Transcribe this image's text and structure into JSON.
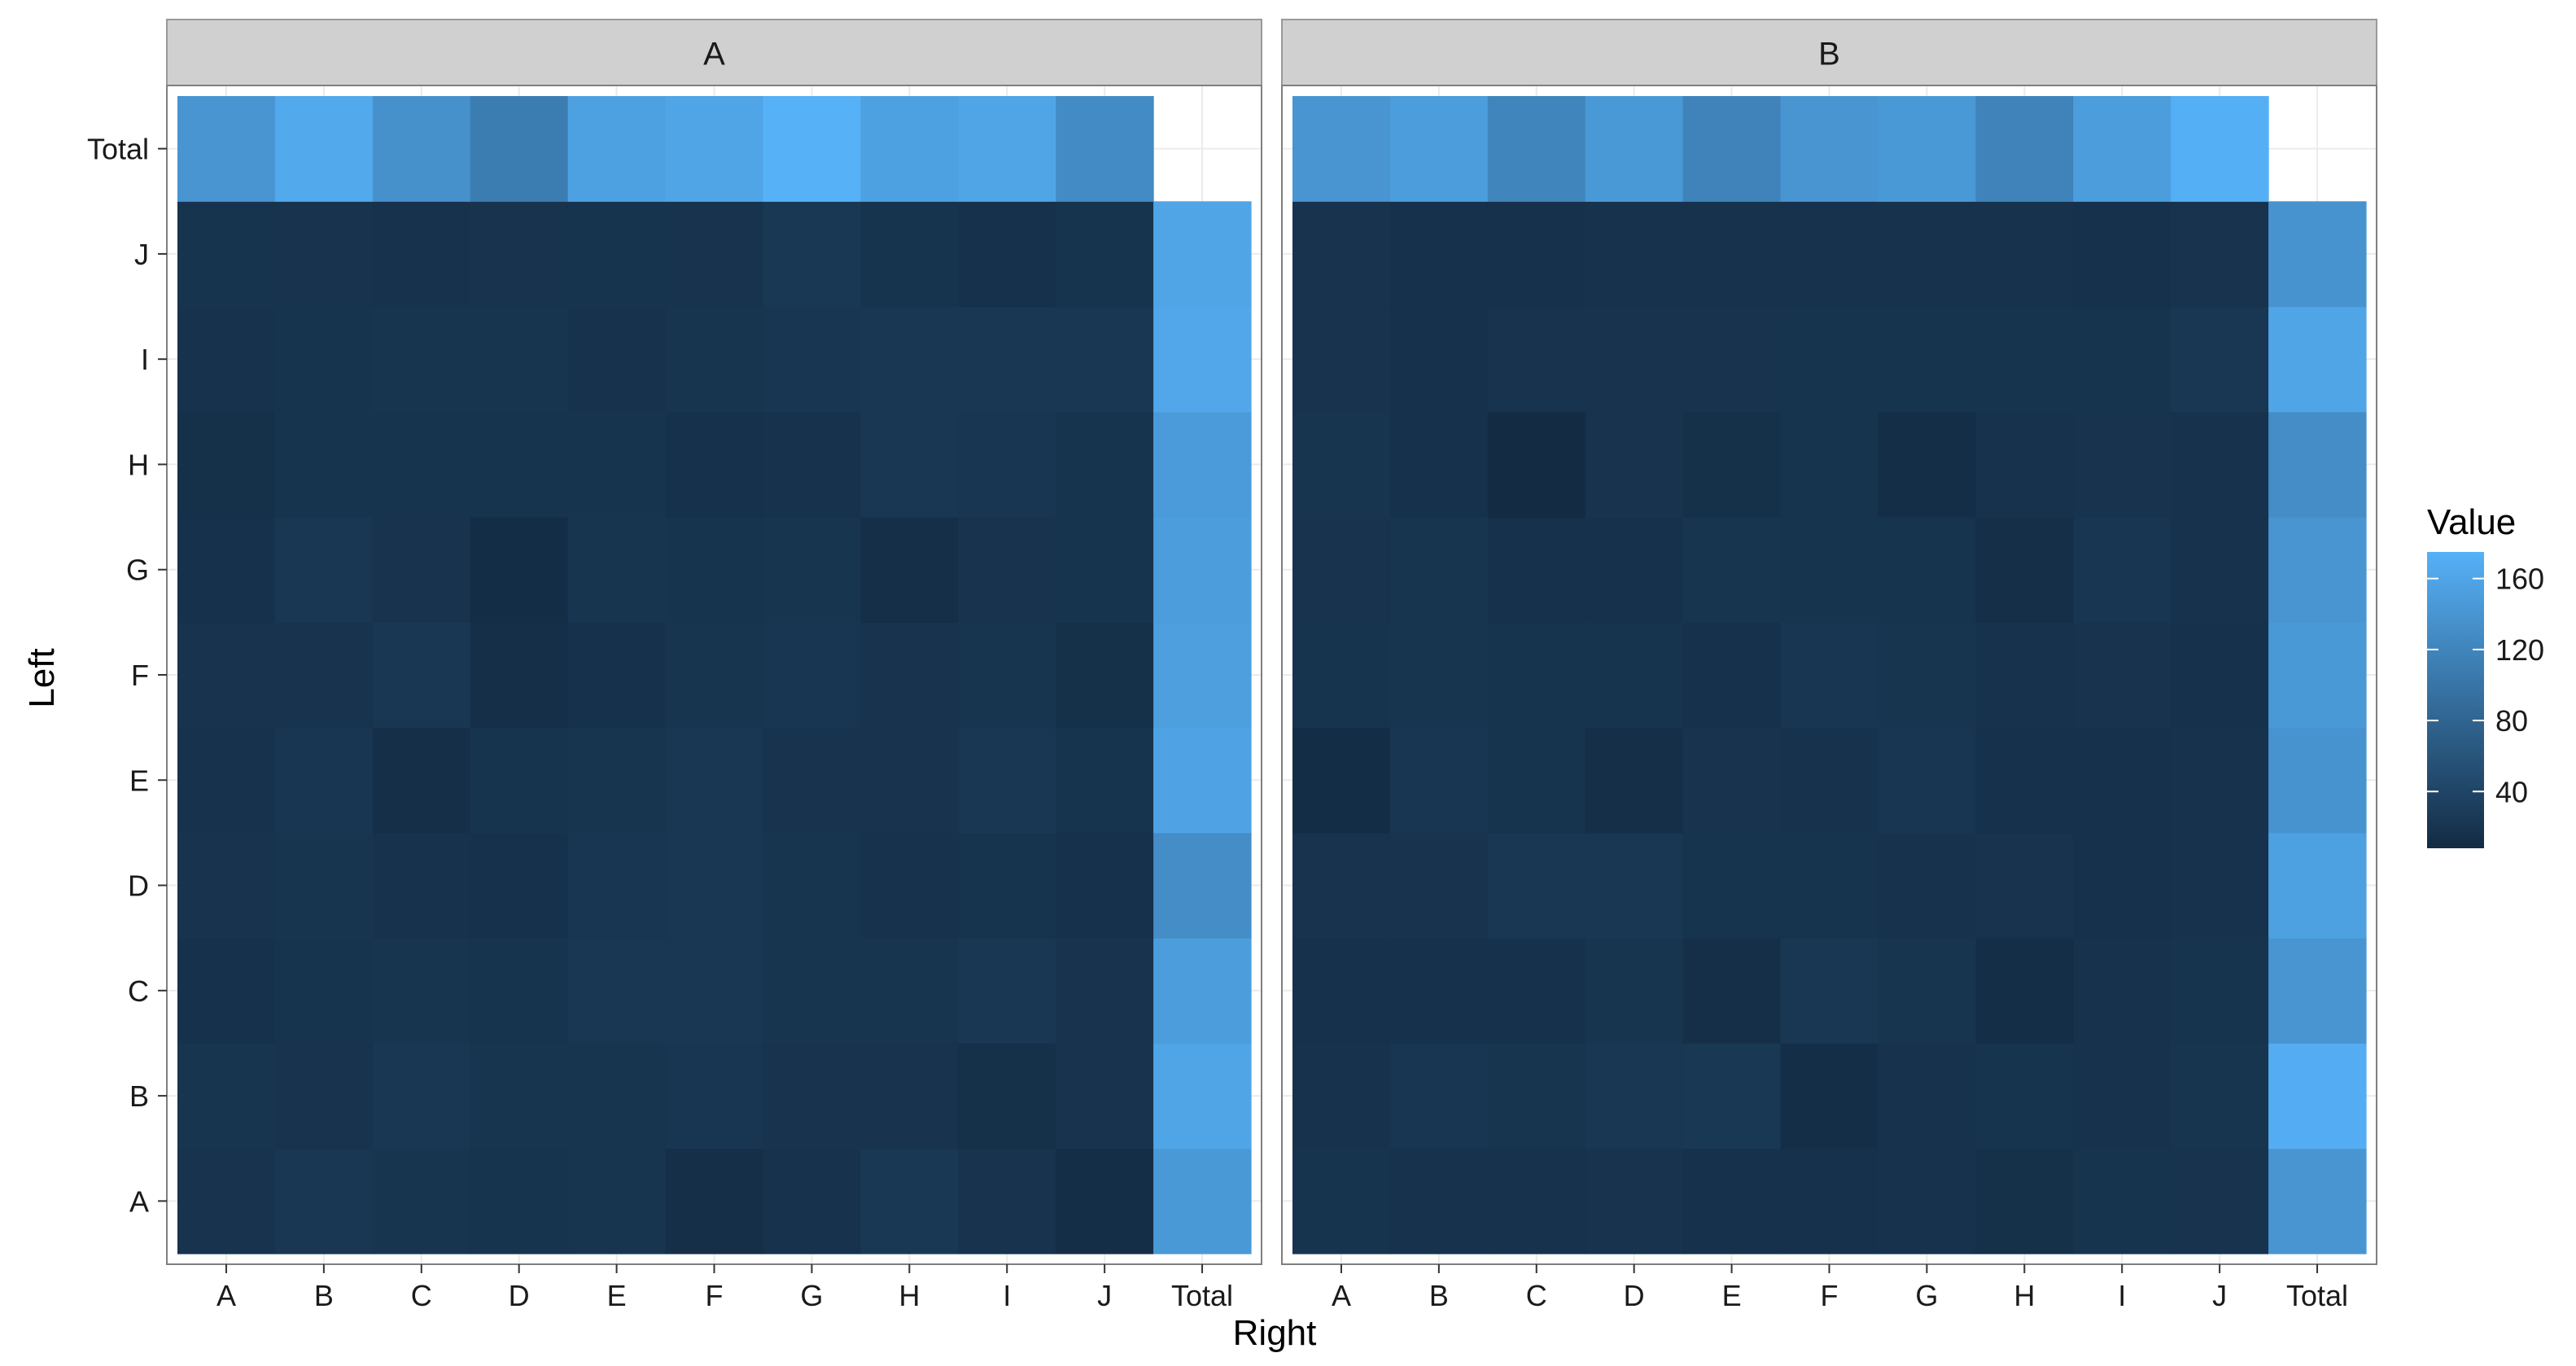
{
  "chart_data": {
    "type": "heatmap",
    "xlabel": "Right",
    "ylabel": "Left",
    "x_categories": [
      "A",
      "B",
      "C",
      "D",
      "E",
      "F",
      "G",
      "H",
      "I",
      "J",
      "Total"
    ],
    "y_categories": [
      "A",
      "B",
      "C",
      "D",
      "E",
      "F",
      "G",
      "H",
      "I",
      "J",
      "Total"
    ],
    "legend": {
      "title": "Value",
      "position": "right",
      "ticks": [
        40,
        80,
        120,
        160
      ],
      "range": [
        8,
        175
      ],
      "low_color": "#132B43",
      "high_color": "#56B1F7"
    },
    "facets": [
      {
        "label": "A",
        "rows": {
          "A": [
            18,
            22,
            20,
            19,
            20,
            13,
            17,
            24,
            18,
            12,
            145
          ],
          "B": [
            20,
            18,
            22,
            20,
            20,
            21,
            18,
            18,
            14,
            18,
            160
          ],
          "C": [
            15,
            19,
            20,
            19,
            22,
            23,
            20,
            20,
            22,
            18,
            150
          ],
          "D": [
            18,
            20,
            17,
            16,
            21,
            22,
            20,
            17,
            19,
            15,
            130
          ],
          "E": [
            17,
            21,
            13,
            19,
            20,
            22,
            18,
            18,
            22,
            19,
            158
          ],
          "F": [
            18,
            18,
            22,
            13,
            16,
            20,
            21,
            18,
            20,
            14,
            152
          ],
          "G": [
            16,
            22,
            18,
            11,
            20,
            19,
            20,
            13,
            18,
            19,
            150
          ],
          "H": [
            14,
            19,
            19,
            19,
            19,
            16,
            17,
            23,
            21,
            19,
            148
          ],
          "I": [
            17,
            19,
            20,
            20,
            17,
            20,
            21,
            23,
            23,
            23,
            162
          ],
          "J": [
            19,
            18,
            17,
            18,
            19,
            18,
            24,
            19,
            15,
            19,
            160
          ],
          "Total": [
            140,
            165,
            135,
            110,
            155,
            160,
            175,
            155,
            160,
            128,
            null
          ]
        }
      },
      {
        "label": "B",
        "rows": {
          "A": [
            19,
            17,
            17,
            18,
            16,
            16,
            17,
            14,
            19,
            18,
            140
          ],
          "B": [
            17,
            21,
            20,
            22,
            24,
            12,
            17,
            19,
            17,
            20,
            170
          ],
          "C": [
            16,
            15,
            15,
            20,
            13,
            22,
            20,
            12,
            17,
            19,
            140
          ],
          "D": [
            18,
            18,
            22,
            22,
            19,
            19,
            17,
            18,
            16,
            17,
            155
          ],
          "E": [
            11,
            21,
            19,
            13,
            18,
            17,
            21,
            16,
            16,
            17,
            138
          ],
          "F": [
            19,
            20,
            19,
            19,
            16,
            21,
            20,
            17,
            18,
            15,
            145
          ],
          "G": [
            18,
            20,
            16,
            16,
            20,
            19,
            19,
            13,
            21,
            17,
            140
          ],
          "H": [
            20,
            16,
            8,
            18,
            14,
            19,
            12,
            17,
            18,
            17,
            130
          ],
          "I": [
            18,
            16,
            18,
            18,
            18,
            19,
            19,
            19,
            19,
            22,
            160
          ],
          "J": [
            18,
            15,
            16,
            17,
            17,
            17,
            17,
            17,
            16,
            18,
            138
          ],
          "Total": [
            140,
            150,
            120,
            145,
            118,
            140,
            145,
            118,
            150,
            172,
            null
          ]
        }
      }
    ]
  }
}
